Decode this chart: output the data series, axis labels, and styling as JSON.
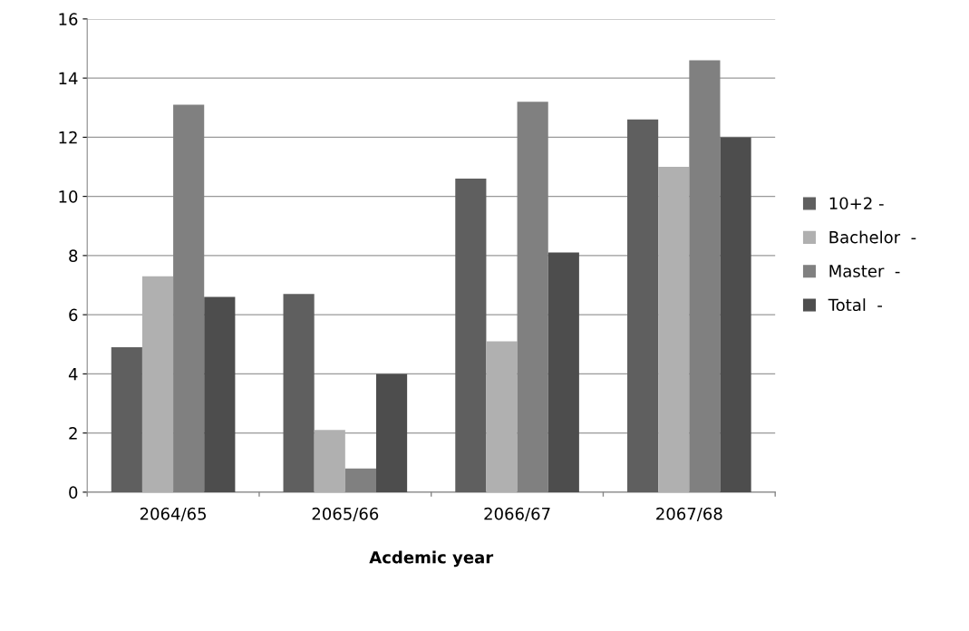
{
  "chart_data": {
    "type": "bar",
    "xlabel": "Acdemic year",
    "categories": [
      "2064/65",
      "2065/66",
      "2066/67",
      "2067/68"
    ],
    "series": [
      {
        "name": "10+2 -",
        "color": "#5f5f5f",
        "values": [
          4.9,
          6.7,
          10.6,
          12.6
        ]
      },
      {
        "name": "Bachelor  -",
        "color": "#b0b0b0",
        "values": [
          7.3,
          2.1,
          5.1,
          11.0
        ]
      },
      {
        "name": "Master  -",
        "color": "#808080",
        "values": [
          13.1,
          0.8,
          13.2,
          14.6
        ]
      },
      {
        "name": "Total  -",
        "color": "#4d4d4d",
        "values": [
          6.6,
          4.0,
          8.1,
          12.0
        ]
      }
    ],
    "ylim": [
      0,
      16
    ],
    "yticks": [
      0,
      2,
      4,
      6,
      8,
      10,
      12,
      14,
      16
    ],
    "grid": "y",
    "legend": "right"
  }
}
